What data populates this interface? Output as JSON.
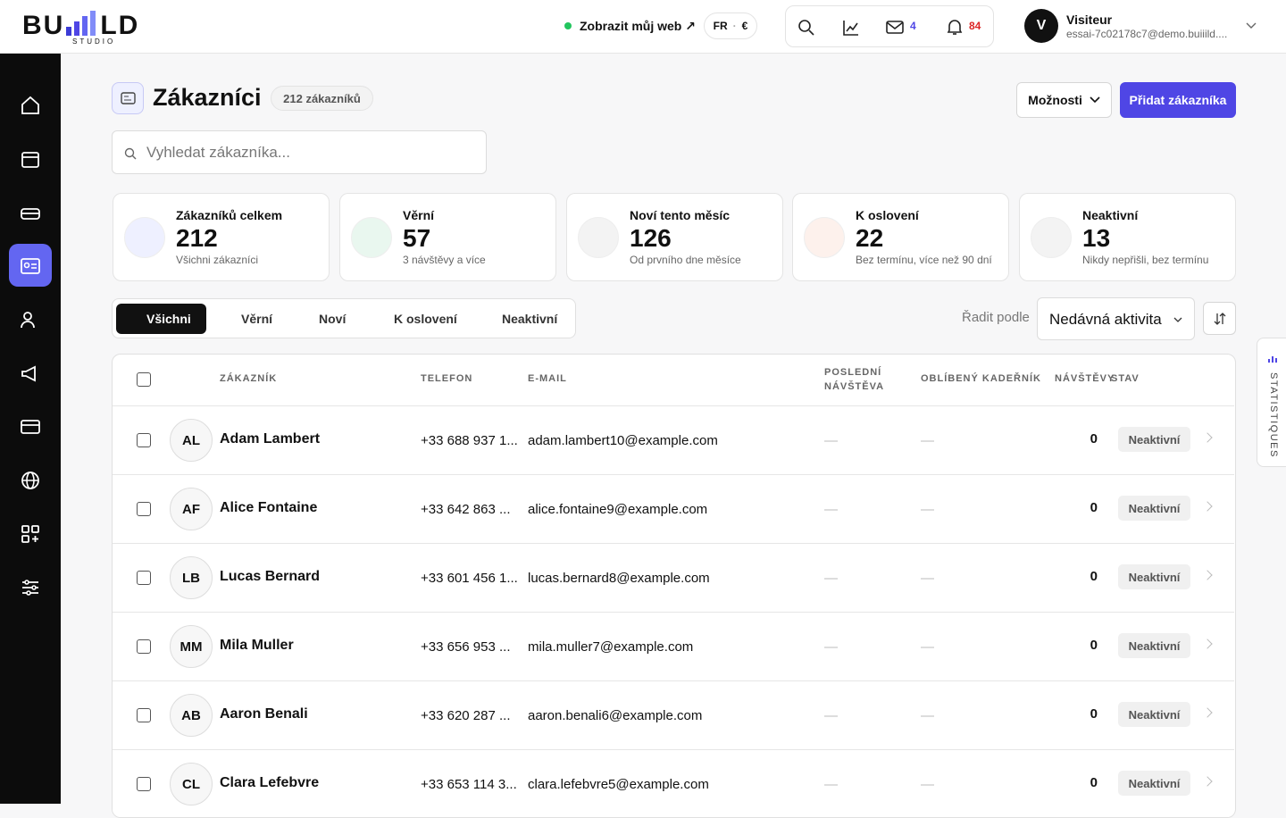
{
  "topbar": {
    "logo": {
      "left": "BU",
      "right": "LD",
      "sub": "STUDIO"
    },
    "view_site": "Zobrazit můj web ↗",
    "language": "FR",
    "separator": "·",
    "currency": "€",
    "mail_count": 4,
    "notification_count": 84,
    "user": {
      "initial": "V",
      "name": "Visiteur",
      "email": "essai-7c02178c7@demo.buiiild...."
    }
  },
  "header": {
    "title": "Zákazníci",
    "count_label": "212 zákazníků",
    "options": "Možnosti",
    "add": "Přidat zákazníka"
  },
  "search": {
    "placeholder": "Vyhledat zákazníka..."
  },
  "stats": [
    {
      "label": "Zákazníků celkem",
      "value": 212,
      "sub": "Všichni zákazníci"
    },
    {
      "label": "Věrní",
      "value": 57,
      "sub": "3 návštěvy a více"
    },
    {
      "label": "Noví tento měsíc",
      "value": 126,
      "sub": "Od prvního dne měsíce"
    },
    {
      "label": "K oslovení",
      "value": 22,
      "sub": "Bez termínu, více než 90 dní"
    },
    {
      "label": "Neaktivní",
      "value": 13,
      "sub": "Nikdy nepřišli, bez termínu"
    }
  ],
  "tabs": [
    "Všichni",
    "Věrní",
    "Noví",
    "K oslovení",
    "Neaktivní"
  ],
  "sort": {
    "label": "Řadit podle",
    "value": "Nedávná aktivita"
  },
  "table": {
    "columns": [
      "ZÁKAZNÍK",
      "TELEFON",
      "E-MAIL",
      "POSLEDNÍ NÁVŠTĚVA",
      "OBLÍBENÝ KADEŘNÍK",
      "NÁVŠTĚVY",
      "STAV"
    ],
    "rows": [
      [
        "AL",
        "Adam Lambert",
        "+33 688 937 1...",
        "adam.lambert10@example.com",
        "—",
        "—",
        0,
        "Neaktivní"
      ],
      [
        "AF",
        "Alice Fontaine",
        "+33 642 863 ...",
        "alice.fontaine9@example.com",
        "—",
        "—",
        0,
        "Neaktivní"
      ],
      [
        "LB",
        "Lucas Bernard",
        "+33 601 456 1...",
        "lucas.bernard8@example.com",
        "—",
        "—",
        0,
        "Neaktivní"
      ],
      [
        "MM",
        "Mila Muller",
        "+33 656 953 ...",
        "mila.muller7@example.com",
        "—",
        "—",
        0,
        "Neaktivní"
      ],
      [
        "AB",
        "Aaron Benali",
        "+33 620 287 ...",
        "aaron.benali6@example.com",
        "—",
        "—",
        0,
        "Neaktivní"
      ],
      [
        "CL",
        "Clara Lefebvre",
        "+33 653 114 3...",
        "clara.lefebvre5@example.com",
        "—",
        "—",
        0,
        "Neaktivní"
      ]
    ]
  },
  "side_tab": "STATISTIQUES"
}
